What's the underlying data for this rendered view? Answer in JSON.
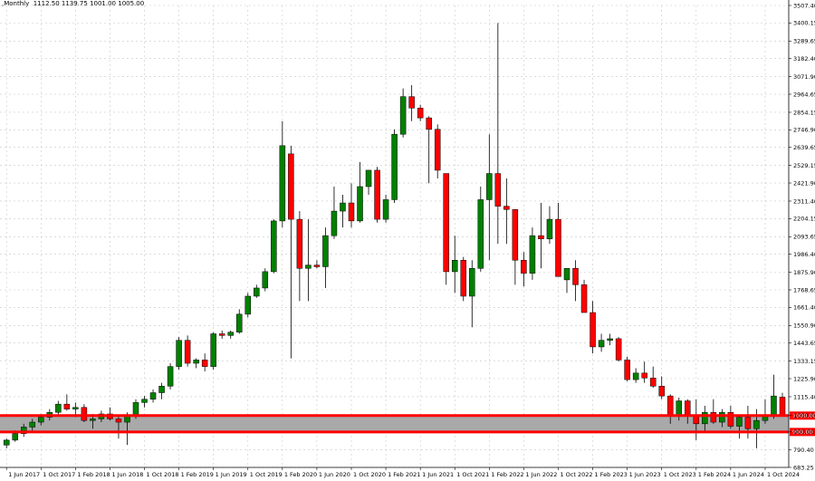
{
  "header": {
    "symbol": ",Monthly",
    "ohlc": "1112.50 1139.75 1001.00 1005.00"
  },
  "colors": {
    "bull": "#008000",
    "bear": "#ff0000",
    "wick": "#000000",
    "zone": "#a9a9a9",
    "level_line": "#ff0000",
    "grid": "#c8c8c8"
  },
  "chart_data": {
    "type": "candlestick",
    "title": "",
    "ylim": [
      683.25,
      3507.4
    ],
    "y_ticks": [
      "683.25",
      "790.40",
      "900.00",
      "1000.00",
      "1115.40",
      "1225.90",
      "1333.15",
      "1443.65",
      "1550.90",
      "1661.40",
      "1768.65",
      "1875.90",
      "1986.40",
      "2093.65",
      "2204.15",
      "2311.40",
      "2421.90",
      "2529.15",
      "2639.65",
      "2746.90",
      "2854.15",
      "2964.65",
      "3071.90",
      "3182.40",
      "3289.65",
      "3400.15",
      "3507.40"
    ],
    "x_labels": [
      "1 Jun 2017",
      "1 Oct 2017",
      "1 Feb 2018",
      "1 Jun 2018",
      "1 Oct 2018",
      "1 Feb 2019",
      "1 Jun 2019",
      "1 Oct 2019",
      "1 Feb 2020",
      "1 Jun 2020",
      "1 Oct 2020",
      "1 Feb 2021",
      "1 Jun 2021",
      "1 Oct 2021",
      "1 Feb 2022",
      "1 Jun 2022",
      "1 Oct 2022",
      "1 Feb 2023",
      "1 Jun 2023",
      "1 Oct 2023",
      "1 Feb 2024",
      "1 Jun 2024",
      "1 Oct 2024"
    ],
    "zone": {
      "low": 900.0,
      "high": 1000.0
    },
    "levels": [
      {
        "price": 1000.0,
        "label": "1000.00"
      },
      {
        "price": 900.0,
        "label": "900.00"
      }
    ],
    "candles": [
      {
        "o": 820,
        "h": 860,
        "l": 800,
        "c": 850
      },
      {
        "o": 850,
        "h": 910,
        "l": 840,
        "c": 890
      },
      {
        "o": 890,
        "h": 950,
        "l": 870,
        "c": 930
      },
      {
        "o": 930,
        "h": 980,
        "l": 900,
        "c": 960
      },
      {
        "o": 960,
        "h": 1010,
        "l": 940,
        "c": 990
      },
      {
        "o": 990,
        "h": 1040,
        "l": 970,
        "c": 1020
      },
      {
        "o": 1020,
        "h": 1090,
        "l": 1000,
        "c": 1070
      },
      {
        "o": 1070,
        "h": 1130,
        "l": 1030,
        "c": 1040
      },
      {
        "o": 1040,
        "h": 1080,
        "l": 990,
        "c": 1050
      },
      {
        "o": 1050,
        "h": 1070,
        "l": 960,
        "c": 970
      },
      {
        "o": 970,
        "h": 1010,
        "l": 920,
        "c": 980
      },
      {
        "o": 980,
        "h": 1030,
        "l": 960,
        "c": 1010
      },
      {
        "o": 1010,
        "h": 1050,
        "l": 970,
        "c": 980
      },
      {
        "o": 980,
        "h": 1000,
        "l": 860,
        "c": 960
      },
      {
        "o": 960,
        "h": 1020,
        "l": 820,
        "c": 1000
      },
      {
        "o": 1000,
        "h": 1100,
        "l": 980,
        "c": 1080
      },
      {
        "o": 1080,
        "h": 1120,
        "l": 1050,
        "c": 1100
      },
      {
        "o": 1100,
        "h": 1160,
        "l": 1080,
        "c": 1140
      },
      {
        "o": 1140,
        "h": 1200,
        "l": 1100,
        "c": 1180
      },
      {
        "o": 1180,
        "h": 1320,
        "l": 1160,
        "c": 1300
      },
      {
        "o": 1300,
        "h": 1480,
        "l": 1280,
        "c": 1460
      },
      {
        "o": 1460,
        "h": 1490,
        "l": 1300,
        "c": 1320
      },
      {
        "o": 1320,
        "h": 1350,
        "l": 1290,
        "c": 1340
      },
      {
        "o": 1340,
        "h": 1380,
        "l": 1270,
        "c": 1300
      },
      {
        "o": 1300,
        "h": 1510,
        "l": 1280,
        "c": 1500
      },
      {
        "o": 1500,
        "h": 1520,
        "l": 1470,
        "c": 1490
      },
      {
        "o": 1490,
        "h": 1520,
        "l": 1470,
        "c": 1510
      },
      {
        "o": 1510,
        "h": 1650,
        "l": 1500,
        "c": 1620
      },
      {
        "o": 1620,
        "h": 1750,
        "l": 1600,
        "c": 1730
      },
      {
        "o": 1730,
        "h": 1800,
        "l": 1720,
        "c": 1780
      },
      {
        "o": 1780,
        "h": 1900,
        "l": 1760,
        "c": 1880
      },
      {
        "o": 1880,
        "h": 2200,
        "l": 1870,
        "c": 2190
      },
      {
        "o": 2190,
        "h": 2800,
        "l": 2150,
        "c": 2650
      },
      {
        "o": 2600,
        "h": 2650,
        "l": 1350,
        "c": 2200
      },
      {
        "o": 2200,
        "h": 2250,
        "l": 1700,
        "c": 1900
      },
      {
        "o": 1900,
        "h": 2200,
        "l": 1700,
        "c": 1920
      },
      {
        "o": 1920,
        "h": 1950,
        "l": 1900,
        "c": 1910
      },
      {
        "o": 1910,
        "h": 2150,
        "l": 1780,
        "c": 2100
      },
      {
        "o": 2100,
        "h": 2400,
        "l": 2080,
        "c": 2250
      },
      {
        "o": 2250,
        "h": 2350,
        "l": 2150,
        "c": 2300
      },
      {
        "o": 2300,
        "h": 2420,
        "l": 2150,
        "c": 2190
      },
      {
        "o": 2190,
        "h": 2550,
        "l": 2180,
        "c": 2400
      },
      {
        "o": 2400,
        "h": 2500,
        "l": 2350,
        "c": 2500
      },
      {
        "o": 2500,
        "h": 2520,
        "l": 2180,
        "c": 2200
      },
      {
        "o": 2200,
        "h": 2350,
        "l": 2180,
        "c": 2320
      },
      {
        "o": 2320,
        "h": 2750,
        "l": 2300,
        "c": 2720
      },
      {
        "o": 2720,
        "h": 3000,
        "l": 2700,
        "c": 2950
      },
      {
        "o": 2950,
        "h": 3020,
        "l": 2800,
        "c": 2880
      },
      {
        "o": 2880,
        "h": 2900,
        "l": 2800,
        "c": 2820
      },
      {
        "o": 2820,
        "h": 2830,
        "l": 2420,
        "c": 2750
      },
      {
        "o": 2750,
        "h": 2780,
        "l": 2450,
        "c": 2500
      },
      {
        "o": 2480,
        "h": 2480,
        "l": 1800,
        "c": 1880
      },
      {
        "o": 1880,
        "h": 2100,
        "l": 1750,
        "c": 1950
      },
      {
        "o": 1950,
        "h": 1970,
        "l": 1700,
        "c": 1730
      },
      {
        "o": 1730,
        "h": 1950,
        "l": 1540,
        "c": 1900
      },
      {
        "o": 1900,
        "h": 2400,
        "l": 1880,
        "c": 2320
      },
      {
        "o": 2320,
        "h": 2720,
        "l": 1950,
        "c": 2480
      },
      {
        "o": 2480,
        "h": 3400,
        "l": 2050,
        "c": 2280
      },
      {
        "o": 2280,
        "h": 2450,
        "l": 2050,
        "c": 2260
      },
      {
        "o": 2260,
        "h": 2260,
        "l": 1800,
        "c": 1950
      },
      {
        "o": 1950,
        "h": 2000,
        "l": 1790,
        "c": 1870
      },
      {
        "o": 1870,
        "h": 2150,
        "l": 1830,
        "c": 2100
      },
      {
        "o": 2100,
        "h": 2300,
        "l": 1900,
        "c": 2080
      },
      {
        "o": 2080,
        "h": 2280,
        "l": 2050,
        "c": 2200
      },
      {
        "o": 2200,
        "h": 2300,
        "l": 1850,
        "c": 1850
      },
      {
        "o": 1830,
        "h": 1900,
        "l": 1750,
        "c": 1900
      },
      {
        "o": 1900,
        "h": 1950,
        "l": 1700,
        "c": 1800
      },
      {
        "o": 1800,
        "h": 1830,
        "l": 1630,
        "c": 1630
      },
      {
        "o": 1630,
        "h": 1700,
        "l": 1380,
        "c": 1420
      },
      {
        "o": 1420,
        "h": 1500,
        "l": 1390,
        "c": 1460
      },
      {
        "o": 1460,
        "h": 1500,
        "l": 1430,
        "c": 1470
      },
      {
        "o": 1470,
        "h": 1480,
        "l": 1330,
        "c": 1340
      },
      {
        "o": 1340,
        "h": 1360,
        "l": 1210,
        "c": 1220
      },
      {
        "o": 1220,
        "h": 1290,
        "l": 1200,
        "c": 1260
      },
      {
        "o": 1260,
        "h": 1330,
        "l": 1200,
        "c": 1230
      },
      {
        "o": 1230,
        "h": 1300,
        "l": 1170,
        "c": 1180
      },
      {
        "o": 1180,
        "h": 1240,
        "l": 1100,
        "c": 1120
      },
      {
        "o": 1120,
        "h": 1130,
        "l": 950,
        "c": 1000
      },
      {
        "o": 1000,
        "h": 1110,
        "l": 970,
        "c": 1090
      },
      {
        "o": 1090,
        "h": 1100,
        "l": 950,
        "c": 1000
      },
      {
        "o": 1000,
        "h": 1100,
        "l": 850,
        "c": 950
      },
      {
        "o": 950,
        "h": 1060,
        "l": 900,
        "c": 1020
      },
      {
        "o": 1020,
        "h": 1100,
        "l": 950,
        "c": 960
      },
      {
        "o": 960,
        "h": 1040,
        "l": 930,
        "c": 1020
      },
      {
        "o": 1020,
        "h": 1060,
        "l": 920,
        "c": 935
      },
      {
        "o": 935,
        "h": 1000,
        "l": 860,
        "c": 990
      },
      {
        "o": 990,
        "h": 1060,
        "l": 860,
        "c": 920
      },
      {
        "o": 920,
        "h": 1040,
        "l": 800,
        "c": 970
      },
      {
        "o": 970,
        "h": 1100,
        "l": 950,
        "c": 1000
      },
      {
        "o": 1000,
        "h": 1250,
        "l": 980,
        "c": 1120
      },
      {
        "o": 1112.5,
        "h": 1139.75,
        "l": 1001,
        "c": 1005
      }
    ]
  }
}
